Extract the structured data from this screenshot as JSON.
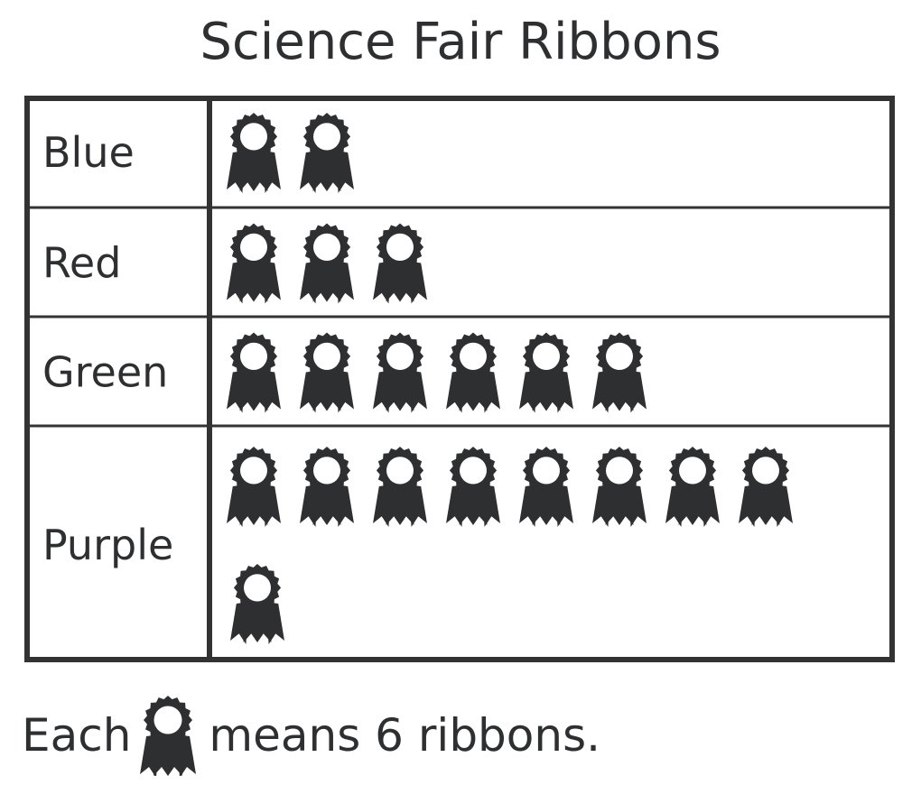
{
  "chart_data": {
    "type": "pictograph",
    "title": "Science Fair Ribbons",
    "categories": [
      "Blue",
      "Red",
      "Green",
      "Purple"
    ],
    "icon_counts": [
      2,
      3,
      6,
      9
    ],
    "icon": "ribbon-award-icon",
    "key": {
      "prefix": "Each",
      "suffix": "means 6 ribbons.",
      "value_per_icon": 6
    },
    "colors": {
      "ink": "#2e2f30",
      "grid": "#333333"
    }
  }
}
